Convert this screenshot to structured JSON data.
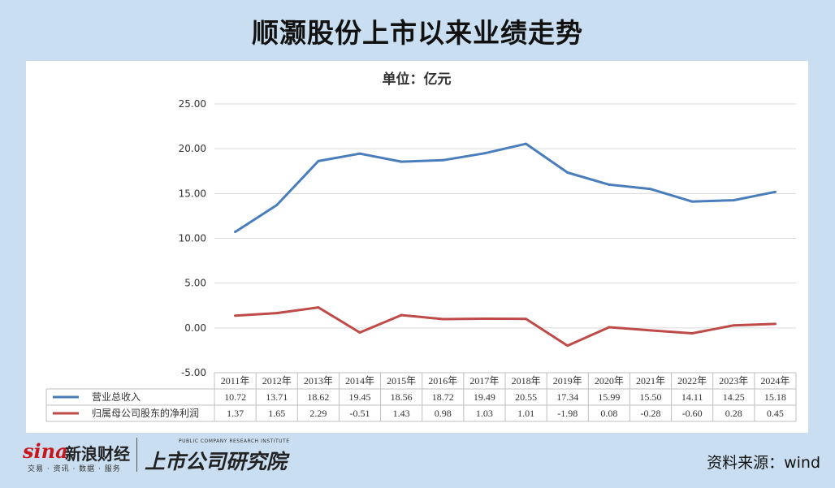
{
  "header": {
    "title": "顺灏股份上市以来业绩走势"
  },
  "footer": {
    "sina_logo": "sina",
    "sina_name": "新浪财经",
    "sina_sub": "交易 · 资讯 · 数据 · 服务",
    "institute_name": "上市公司研究院",
    "institute_sub": "PUBLIC COMPANY RESEARCH INSTITUTE",
    "source": "资料来源：wind"
  },
  "chart_data": {
    "type": "line",
    "title": "单位：亿元",
    "categories": [
      "2011年",
      "2012年",
      "2013年",
      "2014年",
      "2015年",
      "2016年",
      "2017年",
      "2018年",
      "2019年",
      "2020年",
      "2021年",
      "2022年",
      "2023年",
      "2024年"
    ],
    "yticks": [
      "25.00",
      "20.00",
      "15.00",
      "10.00",
      "5.00",
      "0.00",
      "-5.00"
    ],
    "ylim": [
      -5,
      25
    ],
    "grid": true,
    "legend": "data-table",
    "series": [
      {
        "name": "营业总收入",
        "color": "#4a7ebb",
        "values": [
          10.72,
          13.71,
          18.62,
          19.45,
          18.56,
          18.72,
          19.49,
          20.55,
          17.34,
          15.99,
          15.5,
          14.11,
          14.25,
          15.18
        ],
        "labels": [
          "10.72",
          "13.71",
          "18.62",
          "19.45",
          "18.56",
          "18.72",
          "19.49",
          "20.55",
          "17.34",
          "15.99",
          "15.50",
          "14.11",
          "14.25",
          "15.18"
        ]
      },
      {
        "name": "归属母公司股东的净利润",
        "color": "#be4b48",
        "values": [
          1.37,
          1.65,
          2.29,
          -0.51,
          1.43,
          0.98,
          1.03,
          1.01,
          -1.98,
          0.08,
          -0.28,
          -0.6,
          0.28,
          0.45
        ],
        "labels": [
          "1.37",
          "1.65",
          "2.29",
          "-0.51",
          "1.43",
          "0.98",
          "1.03",
          "1.01",
          "-1.98",
          "0.08",
          "-0.28",
          "-0.60",
          "0.28",
          "0.45"
        ]
      }
    ]
  }
}
